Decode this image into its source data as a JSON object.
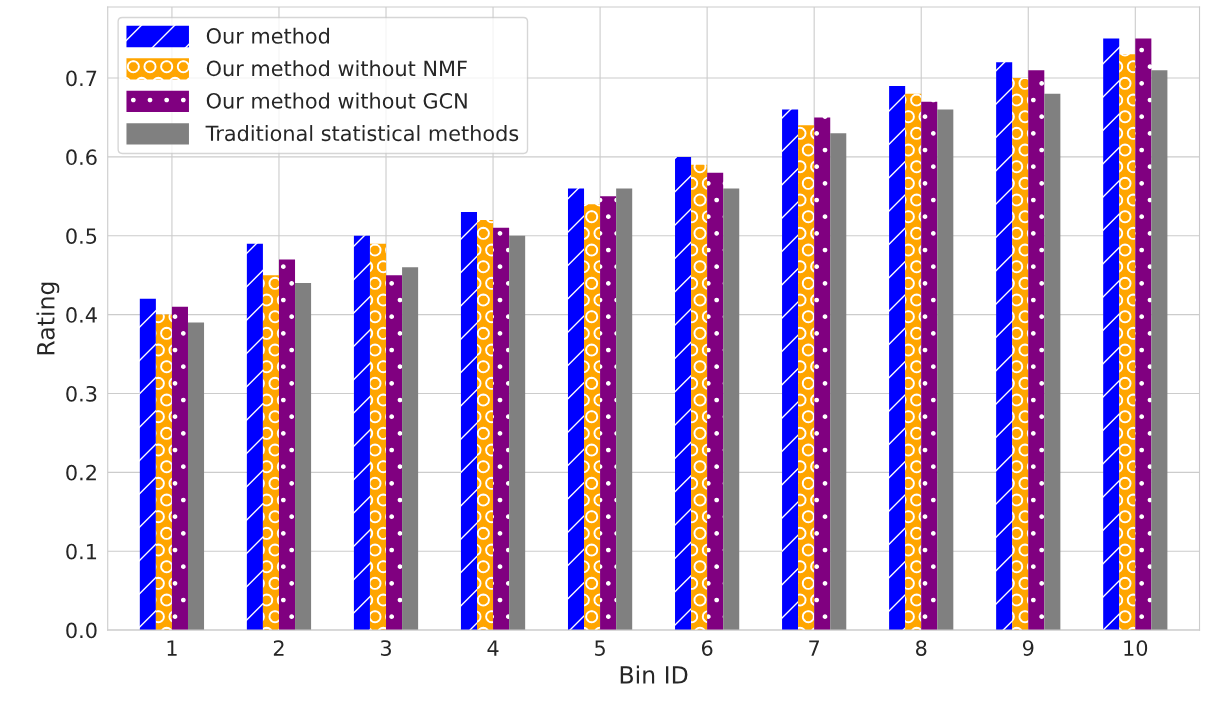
{
  "chart_data": {
    "type": "bar",
    "xlabel": "Bin ID",
    "ylabel": "Rating",
    "categories": [
      "1",
      "2",
      "3",
      "4",
      "5",
      "6",
      "7",
      "8",
      "9",
      "10"
    ],
    "series": [
      {
        "name": "Our method",
        "color": "#0000ff",
        "values": [
          0.42,
          0.49,
          0.5,
          0.53,
          0.56,
          0.6,
          0.66,
          0.69,
          0.72,
          0.75
        ]
      },
      {
        "name": "Our method without NMF",
        "color": "#ffa500",
        "values": [
          0.4,
          0.45,
          0.49,
          0.52,
          0.54,
          0.59,
          0.64,
          0.68,
          0.7,
          0.73
        ]
      },
      {
        "name": "Our method without GCN",
        "color": "#800080",
        "values": [
          0.41,
          0.47,
          0.45,
          0.51,
          0.55,
          0.58,
          0.65,
          0.67,
          0.71,
          0.75
        ]
      },
      {
        "name": "Traditional statistical methods",
        "color": "#808080",
        "values": [
          0.39,
          0.44,
          0.46,
          0.5,
          0.56,
          0.56,
          0.63,
          0.66,
          0.68,
          0.71
        ]
      }
    ],
    "ylim": [
      0,
      0.79
    ],
    "yticks": [
      {
        "value": 0,
        "label": "0.0"
      },
      0.1,
      0.2,
      0.3,
      0.4,
      0.5,
      0.6,
      0.7
    ],
    "grid": true,
    "legend": "top left"
  }
}
